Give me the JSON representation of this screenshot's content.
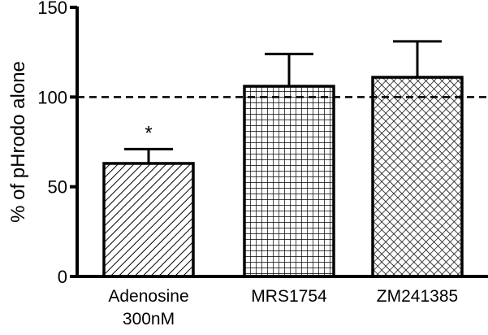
{
  "chart_data": {
    "type": "bar",
    "title": "",
    "xlabel": "",
    "ylabel": "% of pHrodo alone",
    "ylim": [
      0,
      150
    ],
    "yticks": [
      0,
      50,
      100,
      150
    ],
    "grid": false,
    "reference_line": {
      "y": 100,
      "style": "dashed"
    },
    "categories": [
      {
        "lines": [
          "Adenosine",
          "300nM"
        ]
      },
      {
        "lines": [
          "MRS1754"
        ]
      },
      {
        "lines": [
          "ZM241385"
        ]
      }
    ],
    "values": [
      63,
      106,
      111
    ],
    "error_bars": [
      8,
      18,
      20
    ],
    "patterns": [
      "diagonal-hatch",
      "square-grid",
      "crosshatch"
    ],
    "annotations": [
      {
        "category_index": 0,
        "text": "*"
      }
    ],
    "colors": {
      "axis": "#000000",
      "bar_outline": "#000000",
      "fill_background": "#ffffff"
    }
  }
}
